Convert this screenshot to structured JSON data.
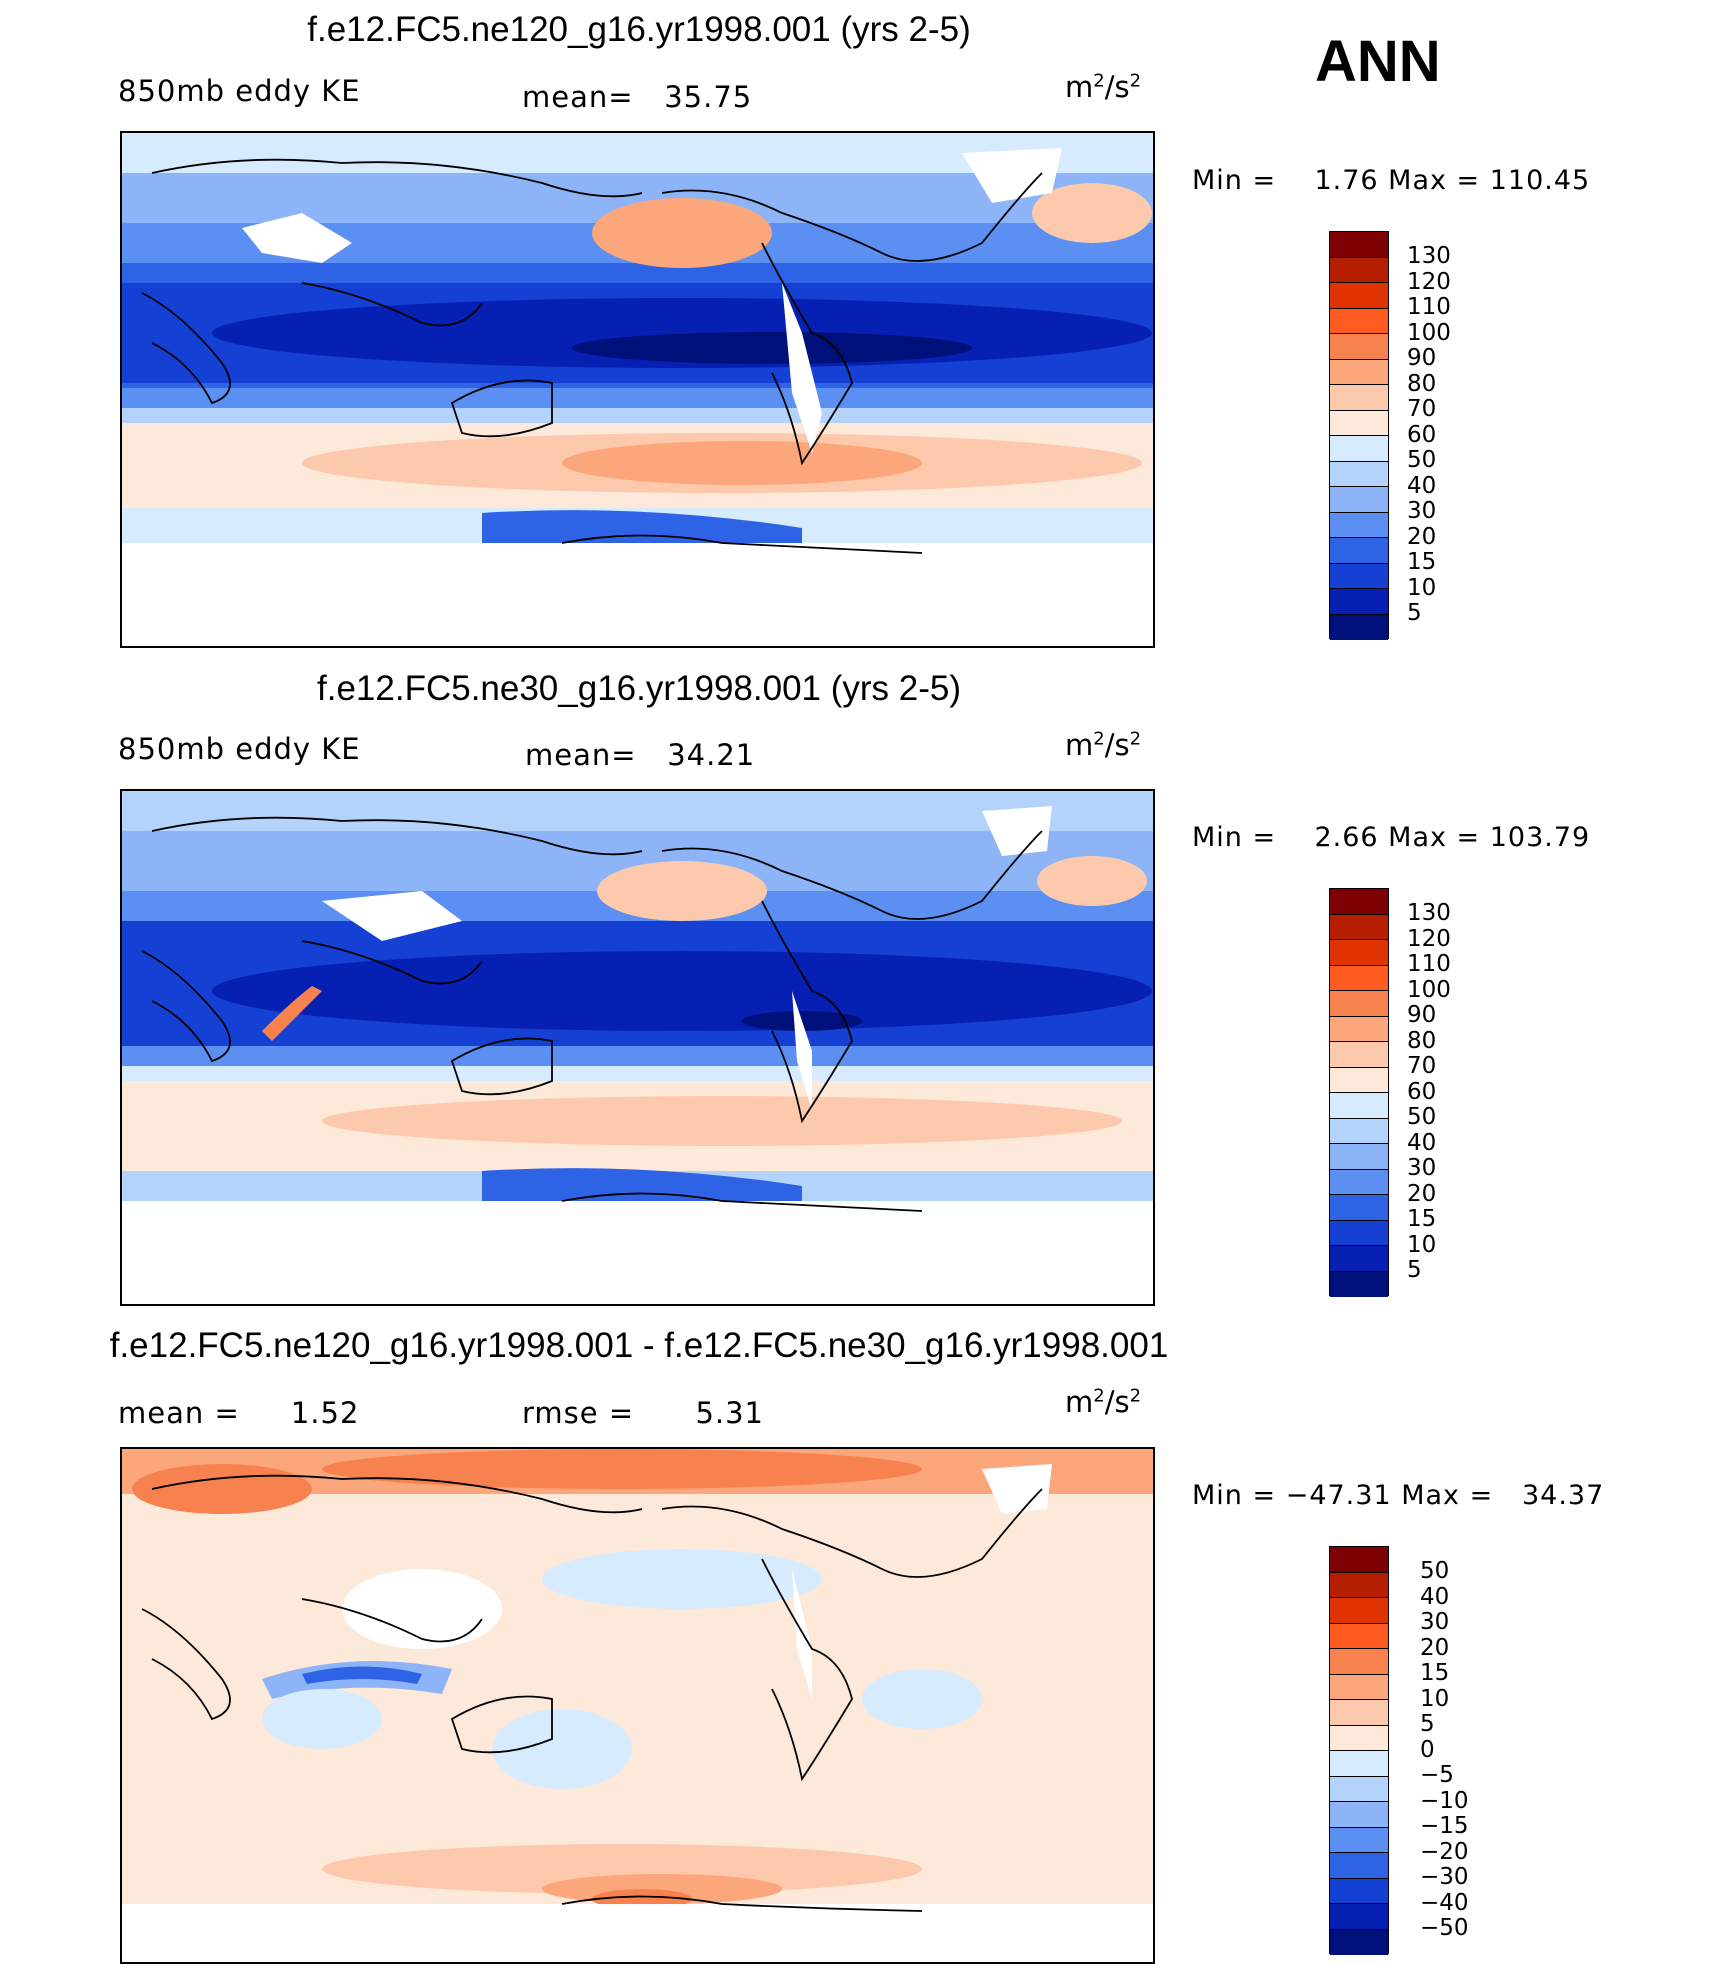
{
  "season": "ANN",
  "panels": [
    {
      "title": "f.e12.FC5.ne120_g16.yr1998.001 (yrs 2-5)",
      "left_label": "850mb eddy KE",
      "center_label": "mean=   35.75",
      "units": "m",
      "units_exp": "2",
      "units_tail": "/s",
      "units_exp2": "2",
      "minmax": "Min =    1.76 Max = 110.45",
      "colorbar": {
        "labels": [
          "130",
          "120",
          "110",
          "100",
          "90",
          "80",
          "70",
          "60",
          "50",
          "40",
          "30",
          "20",
          "15",
          "10",
          "5"
        ],
        "colors": [
          "#7f0000",
          "#b51f00",
          "#e03300",
          "#ff5a1f",
          "#f8824f",
          "#fca67c",
          "#fdc9ad",
          "#fde9da",
          "#d6ebfd",
          "#b4d3fb",
          "#8cb4f7",
          "#5b8ff1",
          "#2f63e6",
          "#1540d4",
          "#0720b4",
          "#00107a"
        ]
      }
    },
    {
      "title": "f.e12.FC5.ne30_g16.yr1998.001 (yrs 2-5)",
      "left_label": "850mb eddy KE",
      "center_label": "mean=   34.21",
      "units": "m",
      "units_exp": "2",
      "units_tail": "/s",
      "units_exp2": "2",
      "minmax": "Min =    2.66 Max = 103.79",
      "colorbar": {
        "labels": [
          "130",
          "120",
          "110",
          "100",
          "90",
          "80",
          "70",
          "60",
          "50",
          "40",
          "30",
          "20",
          "15",
          "10",
          "5"
        ],
        "colors": [
          "#7f0000",
          "#b51f00",
          "#e03300",
          "#ff5a1f",
          "#f8824f",
          "#fca67c",
          "#fdc9ad",
          "#fde9da",
          "#d6ebfd",
          "#b4d3fb",
          "#8cb4f7",
          "#5b8ff1",
          "#2f63e6",
          "#1540d4",
          "#0720b4",
          "#00107a"
        ]
      }
    },
    {
      "title": "f.e12.FC5.ne120_g16.yr1998.001 - f.e12.FC5.ne30_g16.yr1998.001",
      "left_label": "mean =     1.52",
      "center_label": "rmse =      5.31",
      "units": "m",
      "units_exp": "2",
      "units_tail": "/s",
      "units_exp2": "2",
      "minmax": "Min = −47.31 Max =   34.37",
      "colorbar": {
        "labels": [
          "50",
          "40",
          "30",
          "20",
          "15",
          "10",
          "5",
          "0",
          "−5",
          "−10",
          "−15",
          "−20",
          "−30",
          "−40",
          "−50"
        ],
        "colors": [
          "#7f0000",
          "#b51f00",
          "#e03300",
          "#ff5a1f",
          "#f8824f",
          "#fca67c",
          "#fdc9ad",
          "#fde9da",
          "#d6ebfd",
          "#b4d3fb",
          "#8cb4f7",
          "#5b8ff1",
          "#2f63e6",
          "#1540d4",
          "#0720b4",
          "#00107a"
        ]
      }
    }
  ]
}
